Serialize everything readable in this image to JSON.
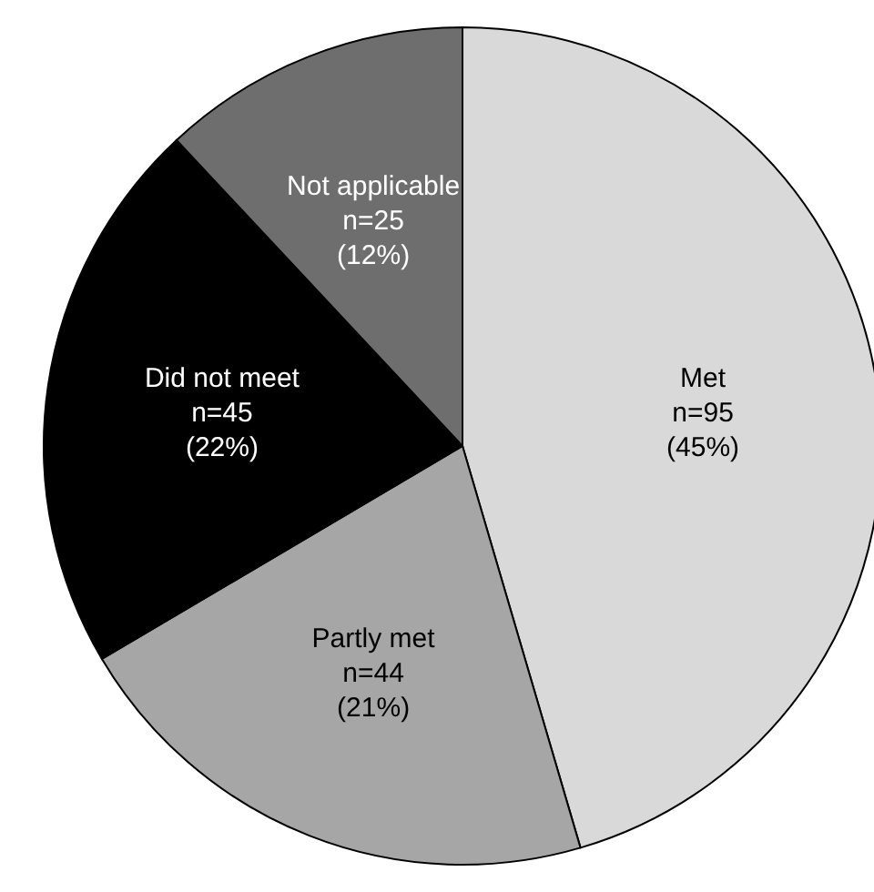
{
  "chart_data": {
    "type": "pie",
    "categories": [
      "Met",
      "Partly met",
      "Did not meet",
      "Not applicable"
    ],
    "values": [
      95,
      44,
      45,
      25
    ],
    "value_labels": [
      "n=95\n(45%)",
      "n=44\n(21%)",
      "n=45\n(22%)",
      "n=25\n(12%)"
    ],
    "colors": [
      "#d9d9d9",
      "#a6a6a6",
      "#000000",
      "#6e6e6e"
    ]
  }
}
